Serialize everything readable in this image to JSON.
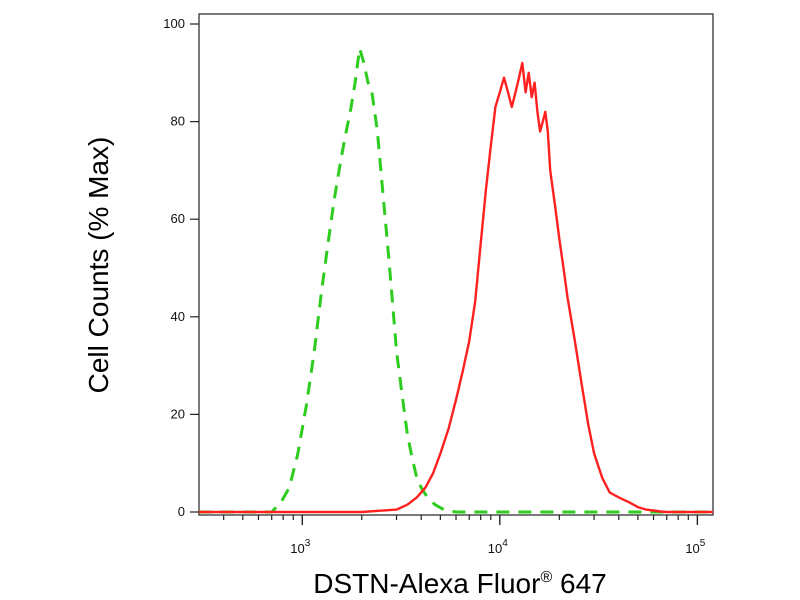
{
  "chart_data": {
    "type": "line",
    "xlabel": "DSTN-Alexa Fluor",
    "xlabel_sup": "®",
    "xlabel_suffix": " 647",
    "ylabel": "Cell Counts (% Max)",
    "x_scale": "log",
    "xlim": [
      300,
      120000
    ],
    "ylim": [
      0,
      105
    ],
    "grid": false,
    "legend": "none",
    "y_ticks": [
      0,
      20,
      40,
      60,
      80,
      100
    ],
    "x_ticks_major": [
      {
        "value": 1000,
        "base": "10",
        "exp": "3"
      },
      {
        "value": 10000,
        "base": "10",
        "exp": "4"
      },
      {
        "value": 100000,
        "base": "10",
        "exp": "5"
      }
    ],
    "x_ticks_minor": [
      400,
      500,
      600,
      700,
      800,
      900,
      2000,
      3000,
      4000,
      5000,
      6000,
      7000,
      8000,
      9000,
      20000,
      30000,
      40000,
      50000,
      60000,
      70000,
      80000,
      90000
    ],
    "series": [
      {
        "color": "#2ecc1f",
        "dash": "dashed",
        "x": [
          300,
          700,
          780,
          860,
          950,
          1050,
          1150,
          1250,
          1350,
          1450,
          1550,
          1650,
          1750,
          1850,
          1950,
          2050,
          2150,
          2250,
          2400,
          2550,
          2700,
          2850,
          3000,
          3200,
          3400,
          3600,
          3800,
          4000,
          4300,
          4700,
          5200,
          6000,
          8000,
          120000
        ],
        "y": [
          0,
          0,
          2,
          5,
          12,
          22,
          33,
          45,
          55,
          64,
          71,
          77,
          82,
          88,
          95,
          92,
          88,
          86,
          78,
          66,
          55,
          44,
          33,
          24,
          16,
          11,
          7,
          5,
          3,
          1.5,
          0.5,
          0,
          0,
          0
        ]
      },
      {
        "color": "#ff2020",
        "dash": "solid",
        "x": [
          300,
          2000,
          3000,
          3400,
          3800,
          4200,
          4600,
          5000,
          5500,
          6000,
          6500,
          7000,
          7500,
          8000,
          8500,
          9000,
          9500,
          10000,
          10500,
          11000,
          11500,
          12000,
          12500,
          13000,
          13500,
          14000,
          14500,
          15000,
          15500,
          16000,
          16500,
          17000,
          17500,
          18000,
          19000,
          20000,
          21000,
          22000,
          24000,
          26000,
          28000,
          30000,
          33000,
          36000,
          40000,
          45000,
          50000,
          55000,
          60000,
          65000,
          70000,
          120000
        ],
        "y": [
          0,
          0,
          0.5,
          1.5,
          3,
          5,
          8,
          12,
          17,
          23,
          29,
          35,
          43,
          55,
          66,
          75,
          83,
          86,
          89,
          86,
          83,
          86,
          89,
          92,
          86,
          90,
          85,
          88,
          82,
          78,
          80,
          82,
          78,
          70,
          63,
          56,
          50,
          44,
          35,
          26,
          18,
          12,
          7,
          4,
          3,
          2,
          1,
          0.5,
          0.3,
          0.1,
          0,
          0
        ]
      }
    ]
  }
}
